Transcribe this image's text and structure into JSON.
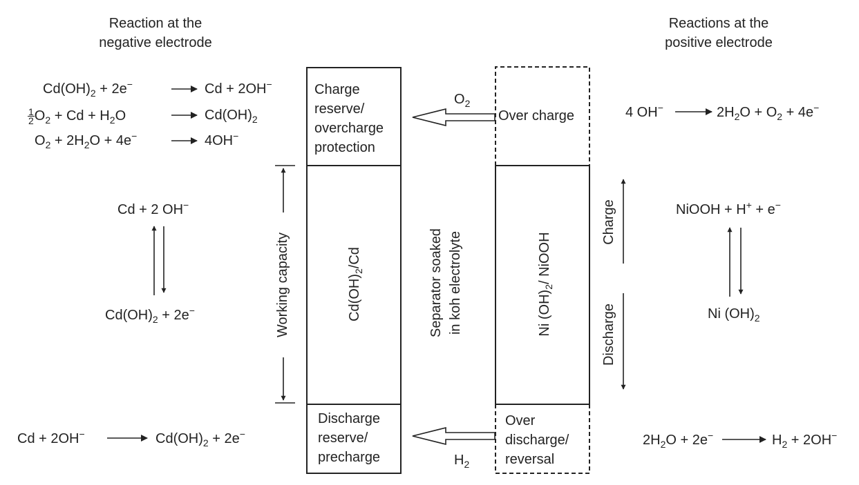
{
  "headings": {
    "negative": [
      "Reaction at the",
      "negative electrode"
    ],
    "positive": [
      "Reactions at the",
      "positive electrode"
    ]
  },
  "negative_reactions": {
    "top": [
      {
        "lhs": "Cd(OH)2 + 2e−",
        "rhs": "Cd + 2OH−"
      },
      {
        "lhs": "½O2 + Cd + H2O",
        "rhs": "Cd(OH)2"
      },
      {
        "lhs": "O2 + 2H2O + 4e−",
        "rhs": "4OH−"
      }
    ],
    "reversible_upper": "Cd + 2 OH−",
    "reversible_lower": "Cd(OH)2 + 2e−",
    "bottom": {
      "lhs": "Cd + 2OH−",
      "rhs": "Cd(OH)2 + 2e−"
    }
  },
  "positive_reactions": {
    "top": {
      "lhs": "4 OH−",
      "rhs": "2H2O + O2 + 4e−"
    },
    "reversible_upper": "NiOOH + H+ + e−",
    "reversible_lower": "Ni (OH)2",
    "bottom": {
      "lhs": "2H2O + 2e−",
      "rhs": "H2 + 2OH−"
    }
  },
  "negative_electrode": {
    "charge_reserve": [
      "Charge",
      "reserve/",
      "overcharge",
      "protection"
    ],
    "active": "Cd(OH)2/Cd",
    "discharge_reserve": [
      "Discharge",
      "reserve/",
      "precharge"
    ]
  },
  "positive_electrode": {
    "overcharge": "Over charge",
    "active": "Ni (OH)2/ NiOOH",
    "overdischarge": [
      "Over",
      "discharge/",
      "reversal"
    ]
  },
  "separator": [
    "Separator soaked",
    "in koh electrolyte"
  ],
  "gases": {
    "top": "O2",
    "bottom": "H2"
  },
  "labels": {
    "working_capacity": "Working capacity",
    "charge": "Charge",
    "discharge": "Discharge"
  }
}
